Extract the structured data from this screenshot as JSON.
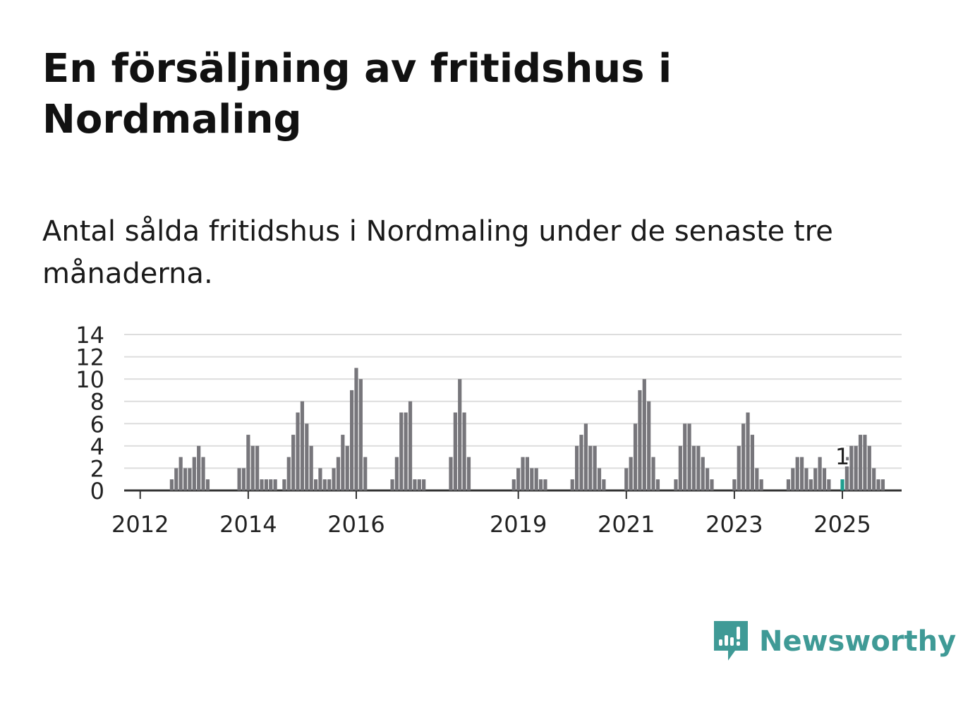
{
  "header": {
    "title": "En försäljning av fritidshus i Nordmaling",
    "subtitle": "Antal sålda fritidshus i Nordmaling under de senaste tre månaderna."
  },
  "brand": {
    "name": "Newsworthy",
    "color": "#3f9a96",
    "icon": "bar-chart-speech-bubble-icon"
  },
  "chart_data": {
    "type": "bar",
    "title": "",
    "xlabel": "",
    "ylabel": "",
    "ylim": [
      0,
      14
    ],
    "yticks": [
      "0",
      "2",
      "4",
      "6",
      "8",
      "10",
      "12",
      "14"
    ],
    "xtick_labels": [
      {
        "label": "2012",
        "month_index": 3
      },
      {
        "label": "2014",
        "month_index": 27
      },
      {
        "label": "2016",
        "month_index": 51
      },
      {
        "label": "2019",
        "month_index": 87
      },
      {
        "label": "2021",
        "month_index": 111
      },
      {
        "label": "2023",
        "month_index": 135
      },
      {
        "label": "2025",
        "month_index": 159
      }
    ],
    "grid": true,
    "bar_color": "#77767b",
    "highlight_color": "#1f9e8f",
    "highlight_index": 159,
    "highlight_label": "1",
    "values": [
      0,
      0,
      0,
      0,
      0,
      0,
      0,
      0,
      0,
      0,
      1,
      2,
      3,
      2,
      2,
      3,
      4,
      3,
      1,
      0,
      0,
      0,
      0,
      0,
      0,
      2,
      2,
      5,
      4,
      4,
      1,
      1,
      1,
      1,
      0,
      1,
      3,
      5,
      7,
      8,
      6,
      4,
      1,
      2,
      1,
      1,
      2,
      3,
      5,
      4,
      9,
      11,
      10,
      3,
      0,
      0,
      0,
      0,
      0,
      1,
      3,
      7,
      7,
      8,
      1,
      1,
      1,
      0,
      0,
      0,
      0,
      0,
      3,
      7,
      10,
      7,
      3,
      0,
      0,
      0,
      0,
      0,
      0,
      0,
      0,
      0,
      1,
      2,
      3,
      3,
      2,
      2,
      1,
      1,
      0,
      0,
      0,
      0,
      0,
      1,
      4,
      5,
      6,
      4,
      4,
      2,
      1,
      0,
      0,
      0,
      0,
      2,
      3,
      6,
      9,
      10,
      8,
      3,
      1,
      0,
      0,
      0,
      1,
      4,
      6,
      6,
      4,
      4,
      3,
      2,
      1,
      0,
      0,
      0,
      0,
      1,
      4,
      6,
      7,
      5,
      2,
      1,
      0,
      0,
      0,
      0,
      0,
      1,
      2,
      3,
      3,
      2,
      1,
      2,
      3,
      2,
      1,
      0,
      0,
      1,
      3,
      4,
      4,
      5,
      5,
      4,
      2,
      1,
      1
    ]
  }
}
